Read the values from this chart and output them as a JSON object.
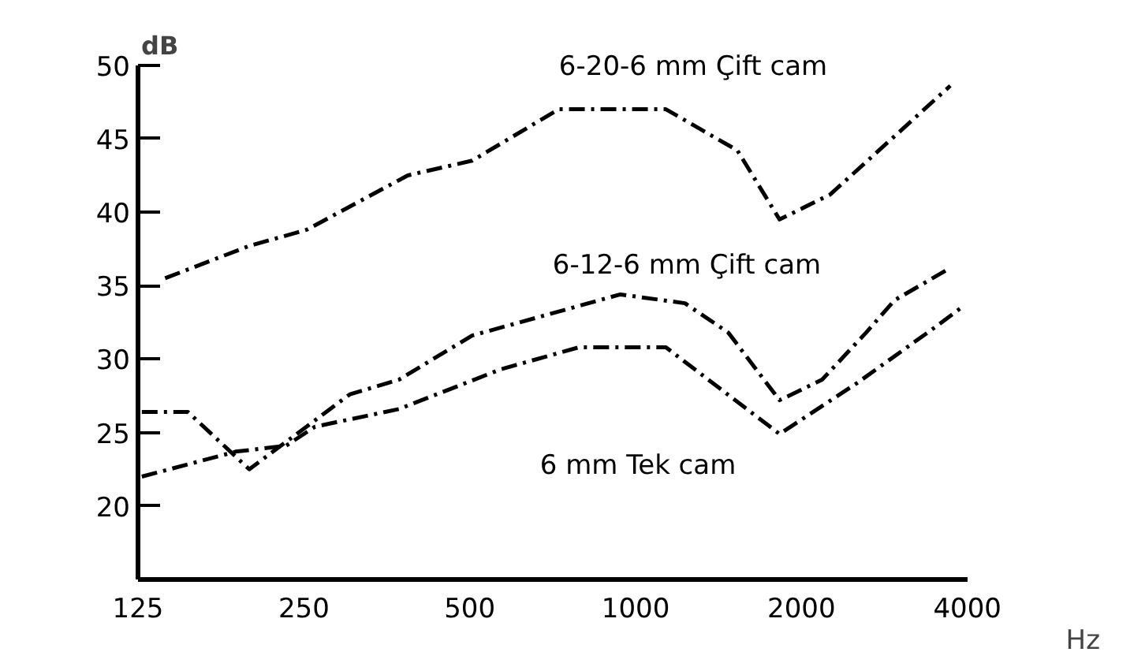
{
  "chart_data": {
    "type": "line",
    "xlabel": "Hz",
    "ylabel": "dB",
    "log": "x",
    "xlim": [
      125,
      4000
    ],
    "xticks": [
      125,
      250,
      500,
      1000,
      2000,
      4000
    ],
    "ylim": [
      15,
      50
    ],
    "yticks": [
      20,
      25,
      30,
      35,
      40,
      45,
      50
    ],
    "grid": false,
    "marker": "none",
    "line_style": "dashed",
    "series": [
      {
        "name": "6-20-6 mm Çift cam",
        "color": "#000000",
        "x": [
          140,
          199,
          253,
          386,
          505,
          725,
          1135,
          1530,
          1825,
          2255,
          3725
        ],
        "values": [
          35.5,
          37.7,
          38.8,
          42.5,
          43.5,
          47,
          47,
          44.2,
          39.5,
          41.2,
          48.6
        ]
      },
      {
        "name": "6-12-6 mm Çift cam",
        "color": "#000000",
        "x": [
          127,
          154,
          199,
          303,
          372,
          505,
          938,
          1229,
          1473,
          1825,
          2180,
          2620,
          2950,
          3725
        ],
        "values": [
          26.4,
          26.4,
          22.5,
          27.6,
          28.6,
          31.6,
          34.4,
          33.8,
          31.8,
          27.2,
          28.6,
          31.8,
          34,
          36.2
        ]
      },
      {
        "name": "6 mm Tek cam",
        "color": "#000000",
        "x": [
          127,
          188,
          232,
          262,
          372,
          569,
          789,
          1135,
          1825,
          2530,
          3475,
          3900
        ],
        "values": [
          22,
          23.7,
          24.1,
          25.4,
          26.6,
          29.3,
          30.8,
          30.8,
          24.9,
          28.4,
          32.1,
          33.5
        ]
      }
    ]
  }
}
